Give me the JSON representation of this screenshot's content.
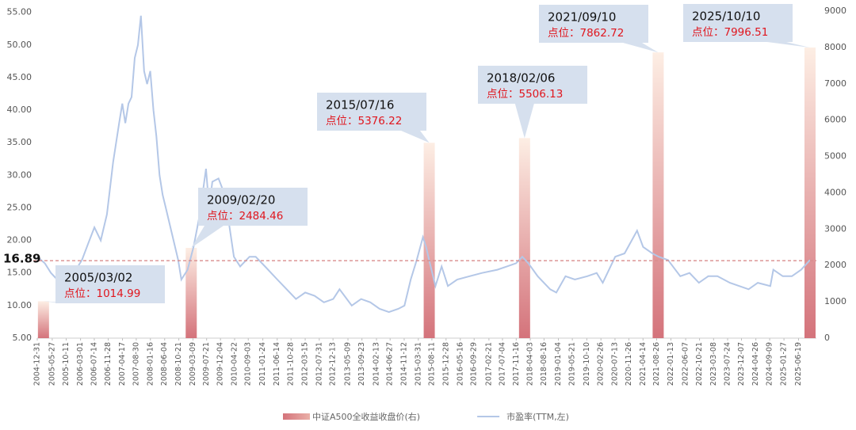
{
  "chart_data": {
    "type": "combo",
    "xlim": [
      "2004-12-31",
      "2025-10-10"
    ],
    "xticks": [
      "2004-12-31",
      "2005-05-27",
      "2005-10-11",
      "2006-03-01",
      "2006-07-14",
      "2006-11-28",
      "2007-04-17",
      "2007-08-30",
      "2008-01-16",
      "2008-06-04",
      "2008-10-21",
      "2009-03-09",
      "2009-07-21",
      "2009-12-04",
      "2010-04-22",
      "2010-09-03",
      "2011-01-24",
      "2011-06-14",
      "2011-10-28",
      "2012-03-15",
      "2012-07-31",
      "2012-12-13",
      "2013-05-09",
      "2013-09-23",
      "2014-02-13",
      "2014-06-27",
      "2014-11-12",
      "2015-03-31",
      "2015-08-11",
      "2015-12-28",
      "2016-05-16",
      "2016-09-29",
      "2017-02-21",
      "2017-07-04",
      "2017-11-16",
      "2018-04-03",
      "2018-08-16",
      "2019-01-04",
      "2019-05-21",
      "2019-10-10",
      "2020-02-26",
      "2020-07-13",
      "2020-11-26",
      "2021-04-14",
      "2021-08-26",
      "2022-01-13",
      "2022-06-07",
      "2022-10-21",
      "2023-03-08",
      "2023-07-24",
      "2023-12-07",
      "2024-04-26",
      "2024-09-09",
      "2025-01-27",
      "2025-06-19"
    ],
    "ylim": [
      5,
      55.2
    ],
    "yticks": [
      {
        "value": 5,
        "label": "5.00"
      },
      {
        "value": 10,
        "label": "10.00"
      },
      {
        "value": 15,
        "label": "15.00"
      },
      {
        "value": 20,
        "label": "20.00"
      },
      {
        "value": 25,
        "label": "25.00"
      },
      {
        "value": 30,
        "label": "30.00"
      },
      {
        "value": 35,
        "label": "35.00"
      },
      {
        "value": 40,
        "label": "40.00"
      },
      {
        "value": 45,
        "label": "45.00"
      },
      {
        "value": 50,
        "label": "50.00"
      },
      {
        "value": 55,
        "label": "55.00"
      }
    ],
    "y2lim": [
      0,
      9000
    ],
    "y2ticks": [
      0,
      1000,
      2000,
      3000,
      4000,
      5000,
      6000,
      7000,
      8000,
      9000
    ],
    "hline": 16.89,
    "series": [
      {
        "name": "中证A500全收益收盘价(右)",
        "type": "bar",
        "axis": "y2",
        "color": "#d4737b",
        "x": [
          "2005/03/02",
          "2009/02/20",
          "2015/07/16",
          "2018/02/06",
          "2021/09/10",
          "2025/10/10"
        ],
        "values": [
          1014.99,
          2484.46,
          5376.22,
          5506.13,
          7862.72,
          7996.51
        ],
        "value_labels": [
          "点位：1014.99",
          "点位：2484.46",
          "点位：5376.22",
          "点位：5506.13",
          "点位：7862.72",
          "点位：7996.51"
        ]
      },
      {
        "name": "市盈率(TTM,左)",
        "type": "line",
        "color": "#b4c7e7",
        "x": [
          "2004-12-31",
          "2005-03-15",
          "2005-05-15",
          "2005-07-15",
          "2005-10-15",
          "2006-01-15",
          "2006-03-15",
          "2006-05-15",
          "2006-07-15",
          "2006-09-15",
          "2006-11-15",
          "2007-01-15",
          "2007-03-15",
          "2007-04-15",
          "2007-05-15",
          "2007-06-15",
          "2007-07-15",
          "2007-08-15",
          "2007-09-15",
          "2007-10-15",
          "2007-11-15",
          "2007-12-15",
          "2008-01-15",
          "2008-02-15",
          "2008-03-15",
          "2008-04-15",
          "2008-05-15",
          "2008-06-15",
          "2008-08-15",
          "2008-10-15",
          "2008-11-15",
          "2009-01-15",
          "2009-03-15",
          "2009-05-15",
          "2009-07-15",
          "2009-08-15",
          "2009-09-15",
          "2009-11-15",
          "2010-01-15",
          "2010-04-15",
          "2010-06-15",
          "2010-09-15",
          "2010-11-15",
          "2011-02-15",
          "2011-06-15",
          "2011-09-15",
          "2011-12-15",
          "2012-03-15",
          "2012-06-15",
          "2012-09-15",
          "2012-12-15",
          "2013-02-15",
          "2013-06-15",
          "2013-09-15",
          "2013-12-15",
          "2014-03-15",
          "2014-06-15",
          "2014-09-15",
          "2014-11-15",
          "2015-01-15",
          "2015-03-15",
          "2015-05-15",
          "2015-06-15",
          "2015-07-15",
          "2015-09-15",
          "2015-11-15",
          "2016-01-15",
          "2016-04-15",
          "2016-08-15",
          "2016-12-15",
          "2017-05-15",
          "2017-11-15",
          "2018-01-15",
          "2018-03-15",
          "2018-06-15",
          "2018-10-15",
          "2018-12-15",
          "2019-03-15",
          "2019-06-15",
          "2019-10-15",
          "2020-01-15",
          "2020-03-15",
          "2020-07-15",
          "2020-10-15",
          "2021-02-15",
          "2021-04-15",
          "2021-07-15",
          "2021-09-15",
          "2021-12-15",
          "2022-04-15",
          "2022-07-15",
          "2022-10-15",
          "2023-01-15",
          "2023-04-15",
          "2023-08-15",
          "2023-11-15",
          "2024-02-15",
          "2024-05-15",
          "2024-09-15",
          "2024-10-15",
          "2025-01-15",
          "2025-04-15",
          "2025-07-15",
          "2025-10-10"
        ],
        "values": [
          17.5,
          16.5,
          15.0,
          14.0,
          15.5,
          15.5,
          17.0,
          19.5,
          22.0,
          20.0,
          24.0,
          32.0,
          38.0,
          41.0,
          38.0,
          41.0,
          42.0,
          48.0,
          50.0,
          54.5,
          46.0,
          44.0,
          46.0,
          40.0,
          36.0,
          30.0,
          27.0,
          25.0,
          21.0,
          17.0,
          14.0,
          15.5,
          19.0,
          24.0,
          31.0,
          25.0,
          29.0,
          29.5,
          27.0,
          17.5,
          16.0,
          17.5,
          17.5,
          16.0,
          14.0,
          12.5,
          11.0,
          12.0,
          11.5,
          10.5,
          11.0,
          12.5,
          10.0,
          11.0,
          10.5,
          9.5,
          9.0,
          9.5,
          10.0,
          14.0,
          17.0,
          20.5,
          19.0,
          17.0,
          13.0,
          16.0,
          13.0,
          14.0,
          14.5,
          15.0,
          15.5,
          16.5,
          17.5,
          16.5,
          14.5,
          12.5,
          12.0,
          14.5,
          14.0,
          14.5,
          15.0,
          13.5,
          17.5,
          18.0,
          21.5,
          19.0,
          18.0,
          17.5,
          17.0,
          14.5,
          15.0,
          13.5,
          14.5,
          14.5,
          13.5,
          13.0,
          12.5,
          13.5,
          13.0,
          15.5,
          14.5,
          14.5,
          15.5,
          17.0
        ]
      }
    ]
  }
}
